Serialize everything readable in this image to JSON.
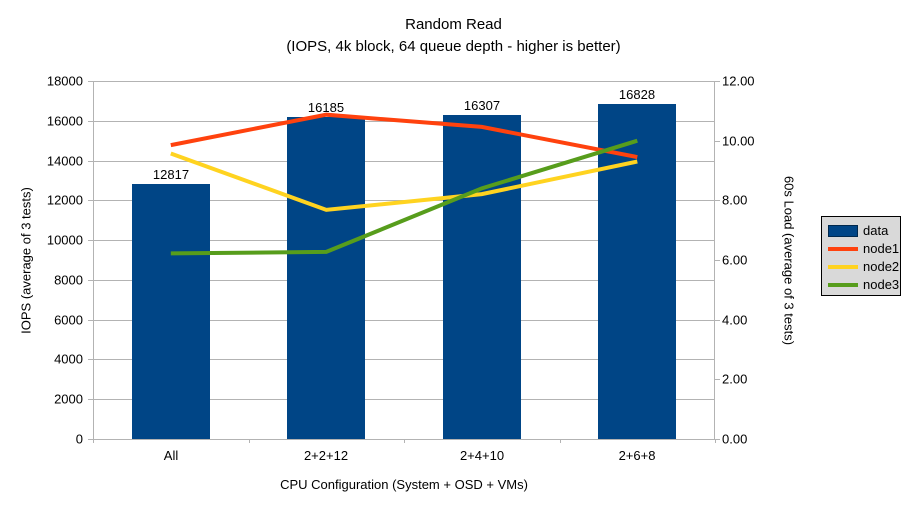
{
  "title": {
    "line1": "Random Read",
    "line2": "(IOPS, 4k block, 64 queue depth - higher is better)"
  },
  "chart_data": {
    "type": "bar+line",
    "categories": [
      "All",
      "2+2+12",
      "2+4+10",
      "2+6+8"
    ],
    "bar_series": {
      "name": "data",
      "axis": "left",
      "color": "#004586",
      "values": [
        12817,
        16185,
        16307,
        16828
      ],
      "data_labels": [
        "12817",
        "16185",
        "16307",
        "16828"
      ]
    },
    "line_series": [
      {
        "name": "node1",
        "axis": "right",
        "color": "#ff420e",
        "values": [
          9.85,
          10.87,
          10.46,
          9.45
        ]
      },
      {
        "name": "node2",
        "axis": "right",
        "color": "#ffd320",
        "values": [
          9.57,
          7.68,
          8.21,
          9.3
        ]
      },
      {
        "name": "node3",
        "axis": "right",
        "color": "#579d1c",
        "values": [
          6.22,
          6.27,
          8.4,
          10.0
        ]
      }
    ],
    "left_axis": {
      "title": "IOPS (average of 3 tests)",
      "min": 0,
      "max": 18000,
      "step": 2000,
      "decimals": 0
    },
    "right_axis": {
      "title": "60s Load (average of 3 tests)",
      "min": 0,
      "max": 12,
      "step": 2,
      "decimals": 2
    },
    "x_axis": {
      "title": "CPU Configuration (System + OSD + VMs)"
    },
    "legend": {
      "position": "right",
      "entries": [
        "data",
        "node1",
        "node2",
        "node3"
      ]
    },
    "grid": "horizontal",
    "colors": {
      "grid": "#b3b3b3",
      "axis": "#b3b3b3",
      "text": "#000000",
      "legend_bg": "#d9d9d9",
      "legend_border": "#000000",
      "background": "#ffffff"
    }
  }
}
